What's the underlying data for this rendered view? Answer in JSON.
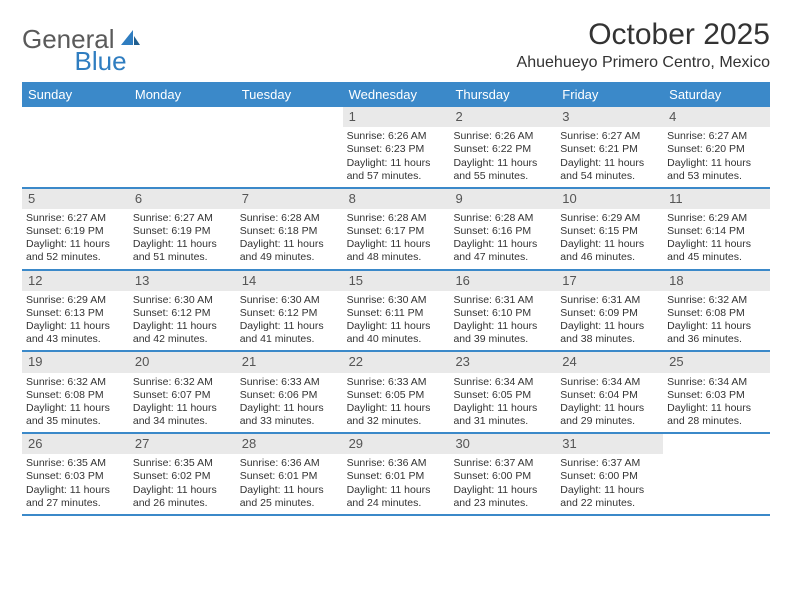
{
  "logo": {
    "general": "General",
    "blue": "Blue"
  },
  "title": "October 2025",
  "location": "Ahuehueyo Primero Centro, Mexico",
  "header_bg": "#3b89c9",
  "header_text": "#ffffff",
  "daynum_bg": "#e9e9e9",
  "weekdays": [
    "Sunday",
    "Monday",
    "Tuesday",
    "Wednesday",
    "Thursday",
    "Friday",
    "Saturday"
  ],
  "weeks": [
    [
      null,
      null,
      null,
      {
        "n": "1",
        "sr": "6:26 AM",
        "ss": "6:23 PM",
        "dl": "11 hours and 57 minutes."
      },
      {
        "n": "2",
        "sr": "6:26 AM",
        "ss": "6:22 PM",
        "dl": "11 hours and 55 minutes."
      },
      {
        "n": "3",
        "sr": "6:27 AM",
        "ss": "6:21 PM",
        "dl": "11 hours and 54 minutes."
      },
      {
        "n": "4",
        "sr": "6:27 AM",
        "ss": "6:20 PM",
        "dl": "11 hours and 53 minutes."
      }
    ],
    [
      {
        "n": "5",
        "sr": "6:27 AM",
        "ss": "6:19 PM",
        "dl": "11 hours and 52 minutes."
      },
      {
        "n": "6",
        "sr": "6:27 AM",
        "ss": "6:19 PM",
        "dl": "11 hours and 51 minutes."
      },
      {
        "n": "7",
        "sr": "6:28 AM",
        "ss": "6:18 PM",
        "dl": "11 hours and 49 minutes."
      },
      {
        "n": "8",
        "sr": "6:28 AM",
        "ss": "6:17 PM",
        "dl": "11 hours and 48 minutes."
      },
      {
        "n": "9",
        "sr": "6:28 AM",
        "ss": "6:16 PM",
        "dl": "11 hours and 47 minutes."
      },
      {
        "n": "10",
        "sr": "6:29 AM",
        "ss": "6:15 PM",
        "dl": "11 hours and 46 minutes."
      },
      {
        "n": "11",
        "sr": "6:29 AM",
        "ss": "6:14 PM",
        "dl": "11 hours and 45 minutes."
      }
    ],
    [
      {
        "n": "12",
        "sr": "6:29 AM",
        "ss": "6:13 PM",
        "dl": "11 hours and 43 minutes."
      },
      {
        "n": "13",
        "sr": "6:30 AM",
        "ss": "6:12 PM",
        "dl": "11 hours and 42 minutes."
      },
      {
        "n": "14",
        "sr": "6:30 AM",
        "ss": "6:12 PM",
        "dl": "11 hours and 41 minutes."
      },
      {
        "n": "15",
        "sr": "6:30 AM",
        "ss": "6:11 PM",
        "dl": "11 hours and 40 minutes."
      },
      {
        "n": "16",
        "sr": "6:31 AM",
        "ss": "6:10 PM",
        "dl": "11 hours and 39 minutes."
      },
      {
        "n": "17",
        "sr": "6:31 AM",
        "ss": "6:09 PM",
        "dl": "11 hours and 38 minutes."
      },
      {
        "n": "18",
        "sr": "6:32 AM",
        "ss": "6:08 PM",
        "dl": "11 hours and 36 minutes."
      }
    ],
    [
      {
        "n": "19",
        "sr": "6:32 AM",
        "ss": "6:08 PM",
        "dl": "11 hours and 35 minutes."
      },
      {
        "n": "20",
        "sr": "6:32 AM",
        "ss": "6:07 PM",
        "dl": "11 hours and 34 minutes."
      },
      {
        "n": "21",
        "sr": "6:33 AM",
        "ss": "6:06 PM",
        "dl": "11 hours and 33 minutes."
      },
      {
        "n": "22",
        "sr": "6:33 AM",
        "ss": "6:05 PM",
        "dl": "11 hours and 32 minutes."
      },
      {
        "n": "23",
        "sr": "6:34 AM",
        "ss": "6:05 PM",
        "dl": "11 hours and 31 minutes."
      },
      {
        "n": "24",
        "sr": "6:34 AM",
        "ss": "6:04 PM",
        "dl": "11 hours and 29 minutes."
      },
      {
        "n": "25",
        "sr": "6:34 AM",
        "ss": "6:03 PM",
        "dl": "11 hours and 28 minutes."
      }
    ],
    [
      {
        "n": "26",
        "sr": "6:35 AM",
        "ss": "6:03 PM",
        "dl": "11 hours and 27 minutes."
      },
      {
        "n": "27",
        "sr": "6:35 AM",
        "ss": "6:02 PM",
        "dl": "11 hours and 26 minutes."
      },
      {
        "n": "28",
        "sr": "6:36 AM",
        "ss": "6:01 PM",
        "dl": "11 hours and 25 minutes."
      },
      {
        "n": "29",
        "sr": "6:36 AM",
        "ss": "6:01 PM",
        "dl": "11 hours and 24 minutes."
      },
      {
        "n": "30",
        "sr": "6:37 AM",
        "ss": "6:00 PM",
        "dl": "11 hours and 23 minutes."
      },
      {
        "n": "31",
        "sr": "6:37 AM",
        "ss": "6:00 PM",
        "dl": "11 hours and 22 minutes."
      },
      null
    ]
  ],
  "labels": {
    "sunrise": "Sunrise:",
    "sunset": "Sunset:",
    "daylight": "Daylight:"
  }
}
